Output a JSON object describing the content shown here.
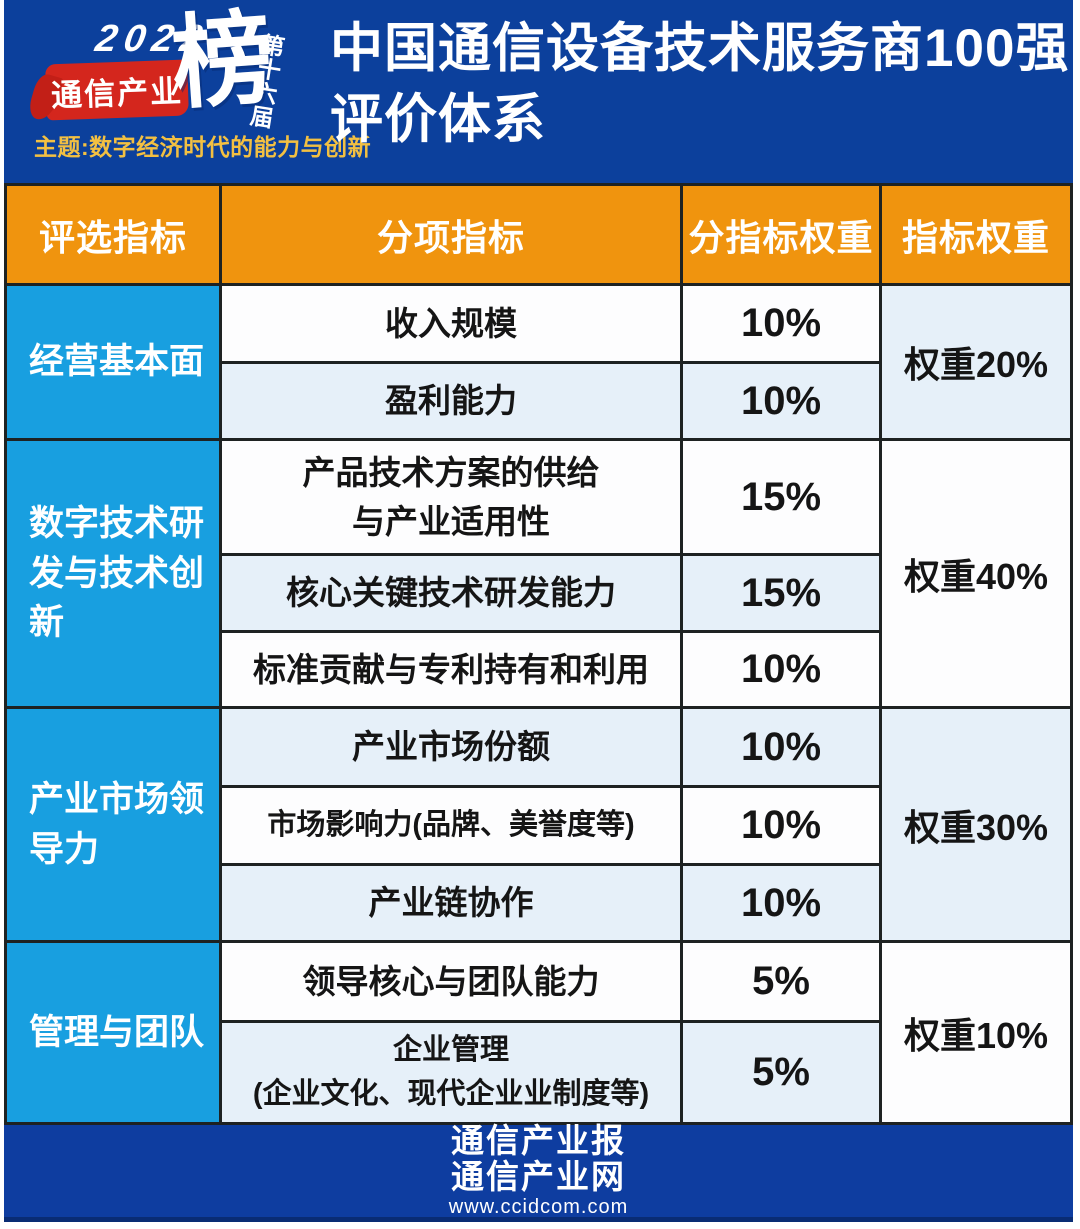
{
  "colors": {
    "hero_bg": "#0c409c",
    "footer_bg": "#0e3da0",
    "table_header_bg": "#f0940e",
    "category_bg": "#189fe0",
    "row_light_bg": "#e6f0f9",
    "row_white_bg": "#fdfdfe",
    "badge_red": "#d4261d",
    "theme_gold": "#f3c042",
    "border": "#1e2222"
  },
  "header": {
    "logo": {
      "year": "2022",
      "badge_text": "通信产业",
      "big_char": "榜",
      "edition": "第十六届",
      "theme": "主题:数字经济时代的能力与创新"
    },
    "title_line1": "中国通信设备技术服务商100强",
    "title_line2": "评价体系"
  },
  "table": {
    "header": {
      "columns": [
        "评选指标",
        "分项指标",
        "分指标权重",
        "指标权重"
      ]
    },
    "groups": [
      {
        "category": "经营基本面",
        "weight_label": "权重20%",
        "rows": [
          {
            "name": "收入规模",
            "weight": "10%"
          },
          {
            "name": "盈利能力",
            "weight": "10%"
          }
        ]
      },
      {
        "category": "数字技术研发与技术创新",
        "weight_label": "权重40%",
        "rows": [
          {
            "name": "产品技术方案的供给\n与产业适用性",
            "weight": "15%"
          },
          {
            "name": "核心关键技术研发能力",
            "weight": "15%"
          },
          {
            "name": "标准贡献与专利持有和利用",
            "weight": "10%"
          }
        ]
      },
      {
        "category": "产业市场领导力",
        "weight_label": "权重30%",
        "rows": [
          {
            "name": "产业市场份额",
            "weight": "10%"
          },
          {
            "name": "市场影响力(品牌、美誉度等)",
            "weight": "10%"
          },
          {
            "name": "产业链协作",
            "weight": "10%"
          }
        ]
      },
      {
        "category": "管理与团队",
        "weight_label": "权重10%",
        "rows": [
          {
            "name": "领导核心与团队能力",
            "weight": "5%"
          },
          {
            "name": "企业管理\n(企业文化、现代企业业制度等)",
            "weight": "5%"
          }
        ]
      }
    ]
  },
  "footer": {
    "line1": "通信产业报",
    "line2": "通信产业网",
    "url": "www.ccidcom.com"
  }
}
